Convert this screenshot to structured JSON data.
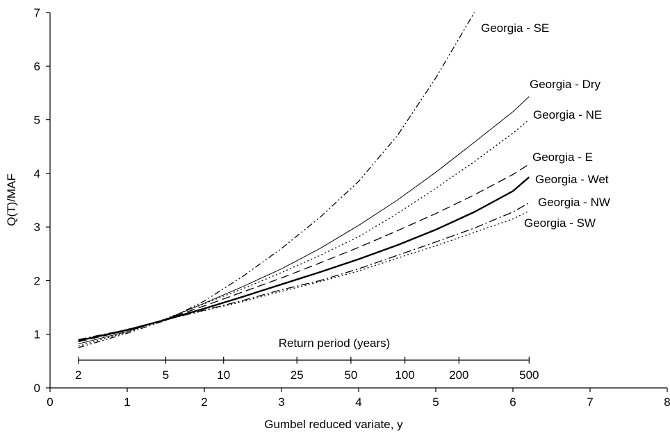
{
  "chart_data": {
    "type": "line",
    "xlabel": "Gumbel reduced variate, y",
    "ylabel": "Q(T)/MAF",
    "xlim": [
      0,
      8
    ],
    "ylim": [
      0,
      7
    ],
    "x_ticks": [
      "0",
      "1",
      "2",
      "3",
      "4",
      "5",
      "6",
      "7",
      "8"
    ],
    "y_ticks": [
      "0",
      "1",
      "2",
      "3",
      "4",
      "5",
      "6",
      "7"
    ],
    "grid": false,
    "return_period": {
      "title": "Return period (years)",
      "ticks": [
        {
          "label": "2",
          "y": 0.367
        },
        {
          "label": "5",
          "y": 1.5
        },
        {
          "label": "10",
          "y": 2.25
        },
        {
          "label": "25",
          "y": 3.2
        },
        {
          "label": "50",
          "y": 3.9
        },
        {
          "label": "100",
          "y": 4.6
        },
        {
          "label": "200",
          "y": 5.3
        },
        {
          "label": "500",
          "y": 6.21
        }
      ]
    },
    "series": [
      {
        "name": "Georgia - SE",
        "style": "dash-dot-dot",
        "width": 1.3,
        "x": [
          0.367,
          1,
          1.5,
          2,
          2.5,
          3,
          3.5,
          4,
          4.5,
          5,
          5.5
        ],
        "y": [
          0.75,
          1.02,
          1.26,
          1.62,
          2.08,
          2.6,
          3.18,
          3.85,
          4.7,
          5.78,
          7.0
        ]
      },
      {
        "name": "Georgia - Dry",
        "style": "solid",
        "width": 1.0,
        "x": [
          0.367,
          1,
          1.5,
          2,
          2.5,
          3,
          3.5,
          4,
          4.5,
          5,
          5.5,
          6,
          6.21
        ],
        "y": [
          0.82,
          1.05,
          1.28,
          1.58,
          1.89,
          2.22,
          2.6,
          3.03,
          3.5,
          4.02,
          4.58,
          5.15,
          5.43
        ]
      },
      {
        "name": "Georgia - NE",
        "style": "dotted",
        "width": 1.3,
        "x": [
          0.367,
          1,
          1.5,
          2,
          2.5,
          3,
          3.5,
          4,
          4.5,
          5,
          5.5,
          6,
          6.21
        ],
        "y": [
          0.78,
          1.04,
          1.29,
          1.57,
          1.85,
          2.15,
          2.47,
          2.82,
          3.25,
          3.72,
          4.22,
          4.75,
          5.0
        ]
      },
      {
        "name": "Georgia - E",
        "style": "dashed",
        "width": 1.3,
        "x": [
          0.367,
          1,
          1.5,
          2,
          2.5,
          3,
          3.5,
          4,
          4.5,
          5,
          5.5,
          6,
          6.21
        ],
        "y": [
          0.86,
          1.07,
          1.28,
          1.53,
          1.79,
          2.05,
          2.33,
          2.62,
          2.93,
          3.25,
          3.6,
          3.98,
          4.17
        ]
      },
      {
        "name": "Georgia - Wet",
        "style": "solid",
        "width": 2.4,
        "x": [
          0.367,
          1,
          1.5,
          2,
          2.5,
          3,
          3.5,
          4,
          4.5,
          5,
          5.5,
          6,
          6.21
        ],
        "y": [
          0.88,
          1.08,
          1.27,
          1.48,
          1.7,
          1.93,
          2.16,
          2.4,
          2.66,
          2.95,
          3.28,
          3.67,
          3.93
        ]
      },
      {
        "name": "Georgia - NW",
        "style": "dash-dot",
        "width": 1.3,
        "x": [
          0.367,
          1,
          1.5,
          2,
          2.5,
          3,
          3.5,
          4,
          4.5,
          5,
          5.5,
          6,
          6.21
        ],
        "y": [
          0.9,
          1.09,
          1.27,
          1.45,
          1.63,
          1.83,
          2.0,
          2.22,
          2.47,
          2.72,
          2.98,
          3.28,
          3.45
        ]
      },
      {
        "name": "Georgia - SW",
        "style": "dotted",
        "width": 1.3,
        "x": [
          0.367,
          1,
          1.5,
          2,
          2.5,
          3,
          3.5,
          4,
          4.5,
          5,
          5.5,
          6,
          6.21
        ],
        "y": [
          0.88,
          1.08,
          1.27,
          1.44,
          1.61,
          1.8,
          1.98,
          2.18,
          2.42,
          2.65,
          2.9,
          3.15,
          3.3
        ]
      }
    ]
  }
}
